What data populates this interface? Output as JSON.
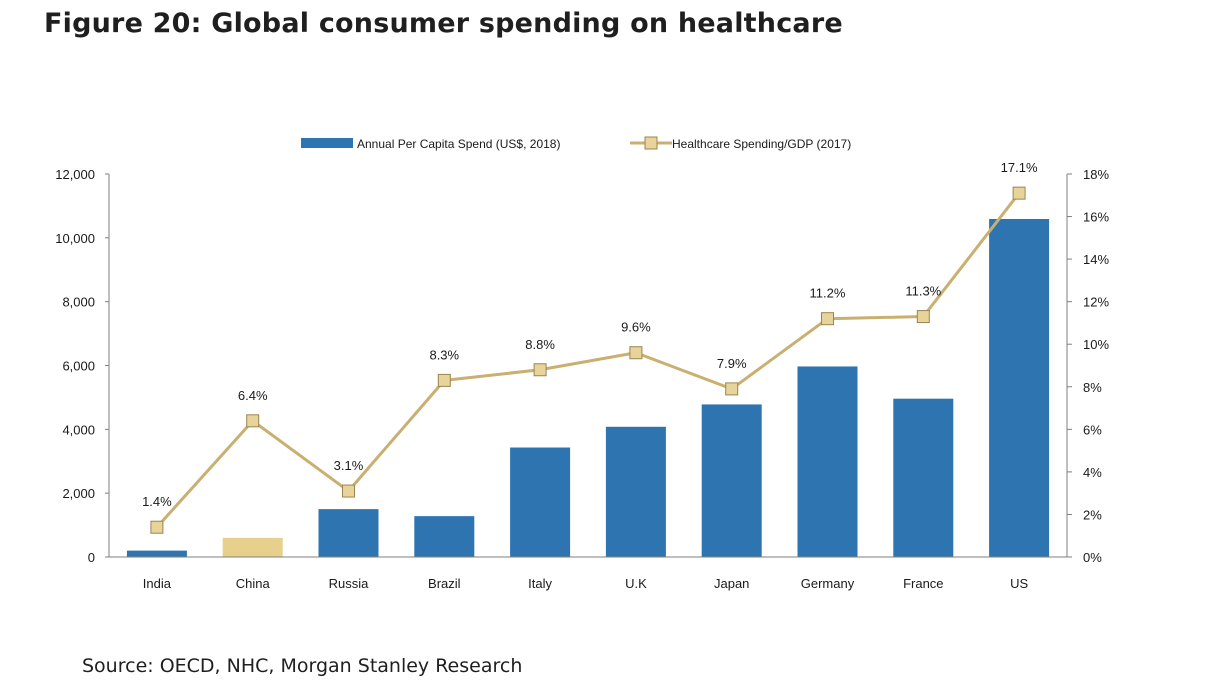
{
  "page": {
    "title": "Figure 20: Global consumer spending on healthcare",
    "source": "Source: OECD, NHC, Morgan Stanley Research"
  },
  "chart_data": {
    "type": "bar",
    "categories": [
      "India",
      "China",
      "Russia",
      "Brazil",
      "Italy",
      "U.K",
      "Japan",
      "Germany",
      "France",
      "US"
    ],
    "series": [
      {
        "name": "Annual Per Capita Spend (US$, 2018)",
        "type": "bar",
        "axis": "left",
        "color": "#2e74b0",
        "highlight": {
          "China": "#e7cf8c"
        },
        "values": [
          200,
          600,
          1500,
          1280,
          3430,
          4080,
          4780,
          5970,
          4960,
          10590
        ]
      },
      {
        "name": "Healthcare Spending/GDP (2017)",
        "type": "line",
        "axis": "right",
        "color": "#c9b071",
        "marker_color": "#e8d39a",
        "values": [
          1.4,
          6.4,
          3.1,
          8.3,
          8.8,
          9.6,
          7.9,
          11.2,
          11.3,
          17.1
        ],
        "labels": [
          "1.4%",
          "6.4%",
          "3.1%",
          "8.3%",
          "8.8%",
          "9.6%",
          "7.9%",
          "11.2%",
          "11.3%",
          "17.1%"
        ]
      }
    ],
    "y_left": {
      "ylim": [
        0,
        12000
      ],
      "ticks": [
        0,
        2000,
        4000,
        6000,
        8000,
        10000,
        12000
      ],
      "tick_labels": [
        "0",
        "2,000",
        "4,000",
        "6,000",
        "8,000",
        "10,000",
        "12,000"
      ]
    },
    "y_right": {
      "ylim": [
        0,
        18
      ],
      "ticks": [
        0,
        2,
        4,
        6,
        8,
        10,
        12,
        14,
        16,
        18
      ],
      "tick_labels": [
        "0%",
        "2%",
        "4%",
        "6%",
        "8%",
        "10%",
        "12%",
        "14%",
        "16%",
        "18%"
      ]
    },
    "legend_position": "top-center",
    "grid": false
  }
}
